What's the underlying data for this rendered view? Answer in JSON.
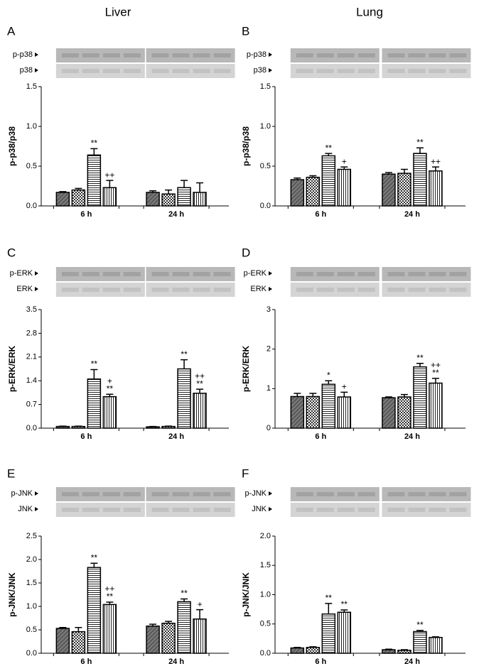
{
  "columns": [
    "Liver",
    "Lung"
  ],
  "chart_data": [
    {
      "type": "bar",
      "panel": "A",
      "blot_labels": [
        "p-p38",
        "p38"
      ],
      "ylabel": "p-p38/p38",
      "categories": [
        "6 h",
        "24 h"
      ],
      "ylim": [
        0,
        1.5
      ],
      "yticks": [
        {
          "value": 0,
          "label": "0.0"
        },
        0.5,
        {
          "value": 1,
          "label": "1.0"
        },
        1.5
      ],
      "series": [
        {
          "pattern": "diagonal",
          "values": [
            0.17,
            0.17
          ],
          "errors": [
            0.01,
            0.02
          ],
          "annotations": [
            null,
            null
          ]
        },
        {
          "pattern": "checker",
          "values": [
            0.2,
            0.15
          ],
          "errors": [
            0.02,
            0.05
          ],
          "annotations": [
            null,
            null
          ]
        },
        {
          "pattern": "horizontal",
          "values": [
            0.64,
            0.23
          ],
          "errors": [
            0.08,
            0.09
          ],
          "annotations": [
            [
              "**"
            ],
            null
          ]
        },
        {
          "pattern": "vertical",
          "values": [
            0.23,
            0.17
          ],
          "errors": [
            0.09,
            0.12
          ],
          "annotations": [
            [
              "++"
            ],
            null
          ]
        }
      ]
    },
    {
      "type": "bar",
      "panel": "B",
      "blot_labels": [
        "p-p38",
        "p38"
      ],
      "ylabel": "p-p38/p38",
      "categories": [
        "6 h",
        "24 h"
      ],
      "ylim": [
        0,
        1.5
      ],
      "yticks": [
        {
          "value": 0,
          "label": "0.0"
        },
        0.5,
        {
          "value": 1,
          "label": "1.0"
        },
        1.5
      ],
      "series": [
        {
          "pattern": "diagonal",
          "values": [
            0.33,
            0.4
          ],
          "errors": [
            0.02,
            0.02
          ],
          "annotations": [
            null,
            null
          ]
        },
        {
          "pattern": "checker",
          "values": [
            0.36,
            0.41
          ],
          "errors": [
            0.02,
            0.05
          ],
          "annotations": [
            null,
            null
          ]
        },
        {
          "pattern": "horizontal",
          "values": [
            0.63,
            0.66
          ],
          "errors": [
            0.03,
            0.07
          ],
          "annotations": [
            [
              "**"
            ],
            [
              "**"
            ]
          ]
        },
        {
          "pattern": "vertical",
          "values": [
            0.46,
            0.44
          ],
          "errors": [
            0.03,
            0.05
          ],
          "annotations": [
            [
              "+"
            ],
            [
              "++"
            ]
          ]
        }
      ]
    },
    {
      "type": "bar",
      "panel": "C",
      "blot_labels": [
        "p-ERK",
        "ERK"
      ],
      "ylabel": "p-ERK/ERK",
      "categories": [
        "6 h",
        "24 h"
      ],
      "ylim": [
        0,
        3.5
      ],
      "yticks": [
        {
          "value": 0,
          "label": "0.0"
        },
        0.7,
        1.4,
        2.1,
        2.8,
        3.5
      ],
      "series": [
        {
          "pattern": "diagonal",
          "values": [
            0.05,
            0.04
          ],
          "errors": [
            0.01,
            0.01
          ],
          "annotations": [
            null,
            null
          ]
        },
        {
          "pattern": "checker",
          "values": [
            0.05,
            0.05
          ],
          "errors": [
            0.01,
            0.01
          ],
          "annotations": [
            null,
            null
          ]
        },
        {
          "pattern": "horizontal",
          "values": [
            1.45,
            1.75
          ],
          "errors": [
            0.28,
            0.27
          ],
          "annotations": [
            [
              "**"
            ],
            [
              "**"
            ]
          ]
        },
        {
          "pattern": "vertical",
          "values": [
            0.93,
            1.03
          ],
          "errors": [
            0.07,
            0.12
          ],
          "annotations": [
            [
              "+",
              "**"
            ],
            [
              "++",
              "**"
            ]
          ]
        }
      ]
    },
    {
      "type": "bar",
      "panel": "D",
      "blot_labels": [
        "p-ERK",
        "ERK"
      ],
      "ylabel": "p-ERK/ERK",
      "categories": [
        "6 h",
        "24 h"
      ],
      "ylim": [
        0,
        3
      ],
      "yticks": [
        0,
        1,
        2,
        3
      ],
      "series": [
        {
          "pattern": "diagonal",
          "values": [
            0.8,
            0.77
          ],
          "errors": [
            0.08,
            0.02
          ],
          "annotations": [
            null,
            null
          ]
        },
        {
          "pattern": "checker",
          "values": [
            0.8,
            0.79
          ],
          "errors": [
            0.08,
            0.06
          ],
          "annotations": [
            null,
            null
          ]
        },
        {
          "pattern": "horizontal",
          "values": [
            1.11,
            1.55
          ],
          "errors": [
            0.09,
            0.09
          ],
          "annotations": [
            [
              "*"
            ],
            [
              "**"
            ]
          ]
        },
        {
          "pattern": "vertical",
          "values": [
            0.79,
            1.14
          ],
          "errors": [
            0.12,
            0.12
          ],
          "annotations": [
            [
              "+"
            ],
            [
              "++",
              "**"
            ]
          ]
        }
      ]
    },
    {
      "type": "bar",
      "panel": "E",
      "blot_labels": [
        "p-JNK",
        "JNK"
      ],
      "ylabel": "p-JNK/JNK",
      "categories": [
        "6 h",
        "24 h"
      ],
      "ylim": [
        0,
        2.5
      ],
      "yticks": [
        {
          "value": 0,
          "label": "0.0"
        },
        0.5,
        {
          "value": 1,
          "label": "1.0"
        },
        1.5,
        {
          "value": 2,
          "label": "2.0"
        },
        2.5
      ],
      "series": [
        {
          "pattern": "diagonal",
          "values": [
            0.53,
            0.58
          ],
          "errors": [
            0.02,
            0.04
          ],
          "annotations": [
            null,
            null
          ]
        },
        {
          "pattern": "checker",
          "values": [
            0.46,
            0.64
          ],
          "errors": [
            0.09,
            0.04
          ],
          "annotations": [
            null,
            null
          ]
        },
        {
          "pattern": "horizontal",
          "values": [
            1.83,
            1.1
          ],
          "errors": [
            0.09,
            0.06
          ],
          "annotations": [
            [
              "**"
            ],
            [
              "**"
            ]
          ]
        },
        {
          "pattern": "vertical",
          "values": [
            1.04,
            0.73
          ],
          "errors": [
            0.05,
            0.2
          ],
          "annotations": [
            [
              "++",
              "**"
            ],
            [
              "+"
            ]
          ]
        }
      ]
    },
    {
      "type": "bar",
      "panel": "F",
      "blot_labels": [
        "p-JNK",
        "JNK"
      ],
      "ylabel": "p-JNK/JNK",
      "categories": [
        "6 h",
        "24 h"
      ],
      "ylim": [
        0,
        2
      ],
      "yticks": [
        {
          "value": 0,
          "label": "0.0"
        },
        0.5,
        {
          "value": 1,
          "label": "1.0"
        },
        1.5,
        {
          "value": 2,
          "label": "2.0"
        }
      ],
      "series": [
        {
          "pattern": "diagonal",
          "values": [
            0.09,
            0.06
          ],
          "errors": [
            0.01,
            0.01
          ],
          "annotations": [
            null,
            null
          ]
        },
        {
          "pattern": "checker",
          "values": [
            0.1,
            0.05
          ],
          "errors": [
            0.01,
            0.01
          ],
          "annotations": [
            null,
            null
          ]
        },
        {
          "pattern": "horizontal",
          "values": [
            0.67,
            0.37
          ],
          "errors": [
            0.18,
            0.02
          ],
          "annotations": [
            [
              "**"
            ],
            [
              "**"
            ]
          ]
        },
        {
          "pattern": "vertical",
          "values": [
            0.7,
            0.27
          ],
          "errors": [
            0.04,
            0.01
          ],
          "annotations": [
            [
              "**"
            ],
            null
          ]
        }
      ]
    }
  ]
}
